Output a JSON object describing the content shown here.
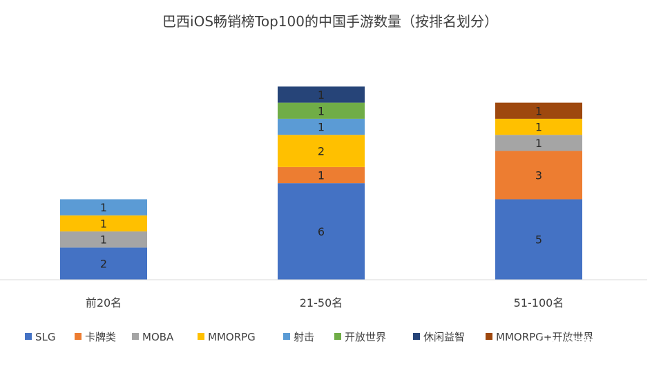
{
  "chart_data": {
    "type": "bar",
    "stacked": true,
    "title": "巴西iOS畅销榜Top100的中国手游数量（按排名划分）",
    "categories": [
      "前20名",
      "21-50名",
      "51-100名"
    ],
    "series": [
      {
        "name": "SLG",
        "color": "#4472C4",
        "values": [
          2,
          6,
          5
        ]
      },
      {
        "name": "卡牌类",
        "color": "#ED7D31",
        "values": [
          0,
          1,
          3
        ]
      },
      {
        "name": "MOBA",
        "color": "#A5A5A5",
        "values": [
          1,
          0,
          1
        ]
      },
      {
        "name": "MMORPG",
        "color": "#FFC000",
        "values": [
          1,
          2,
          1
        ]
      },
      {
        "name": "射击",
        "color": "#5B9BD5",
        "values": [
          1,
          1,
          0
        ]
      },
      {
        "name": "开放世界",
        "color": "#70AD47",
        "values": [
          0,
          1,
          0
        ]
      },
      {
        "name": "休闲益智",
        "color": "#264478",
        "values": [
          0,
          1,
          0
        ]
      },
      {
        "name": "MMORPG+开放世界",
        "color": "#9E480E",
        "values": [
          0,
          0,
          1
        ]
      }
    ],
    "xlabel": "",
    "ylabel": "",
    "ylim": [
      0,
      13
    ],
    "grid": false,
    "legend_position": "bottom"
  },
  "watermark": {
    "text": "游戏财经汇",
    "icon": "wechat-icon"
  }
}
